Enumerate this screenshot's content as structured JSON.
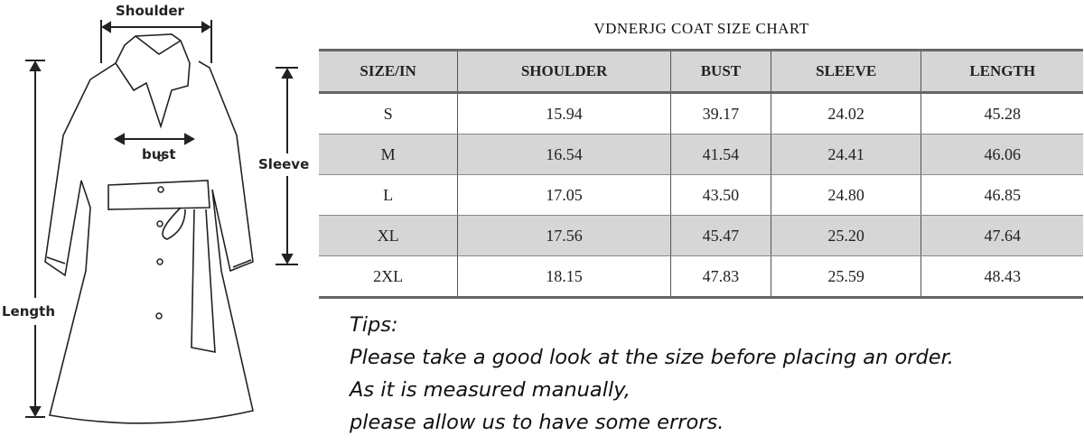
{
  "diagram": {
    "labels": {
      "shoulder": "Shoulder",
      "bust": "bust",
      "sleeve": "Sleeve",
      "length": "Length"
    }
  },
  "chart": {
    "title": "VDNERJG COAT SIZE CHART",
    "headers": [
      "SIZE/IN",
      "SHOULDER",
      "BUST",
      "SLEEVE",
      "LENGTH"
    ],
    "rows": [
      [
        "S",
        "15.94",
        "39.17",
        "24.02",
        "45.28"
      ],
      [
        "M",
        "16.54",
        "41.54",
        "24.41",
        "46.06"
      ],
      [
        "L",
        "17.05",
        "43.50",
        "24.80",
        "46.85"
      ],
      [
        "XL",
        "17.56",
        "45.47",
        "25.20",
        "47.64"
      ],
      [
        "2XL",
        "18.15",
        "47.83",
        "25.59",
        "48.43"
      ]
    ]
  },
  "tips": {
    "heading": "Tips:",
    "lines": [
      "Please take a good look at the size before placing an order.",
      "As it is measured manually,",
      "please allow us to have some errors."
    ]
  }
}
